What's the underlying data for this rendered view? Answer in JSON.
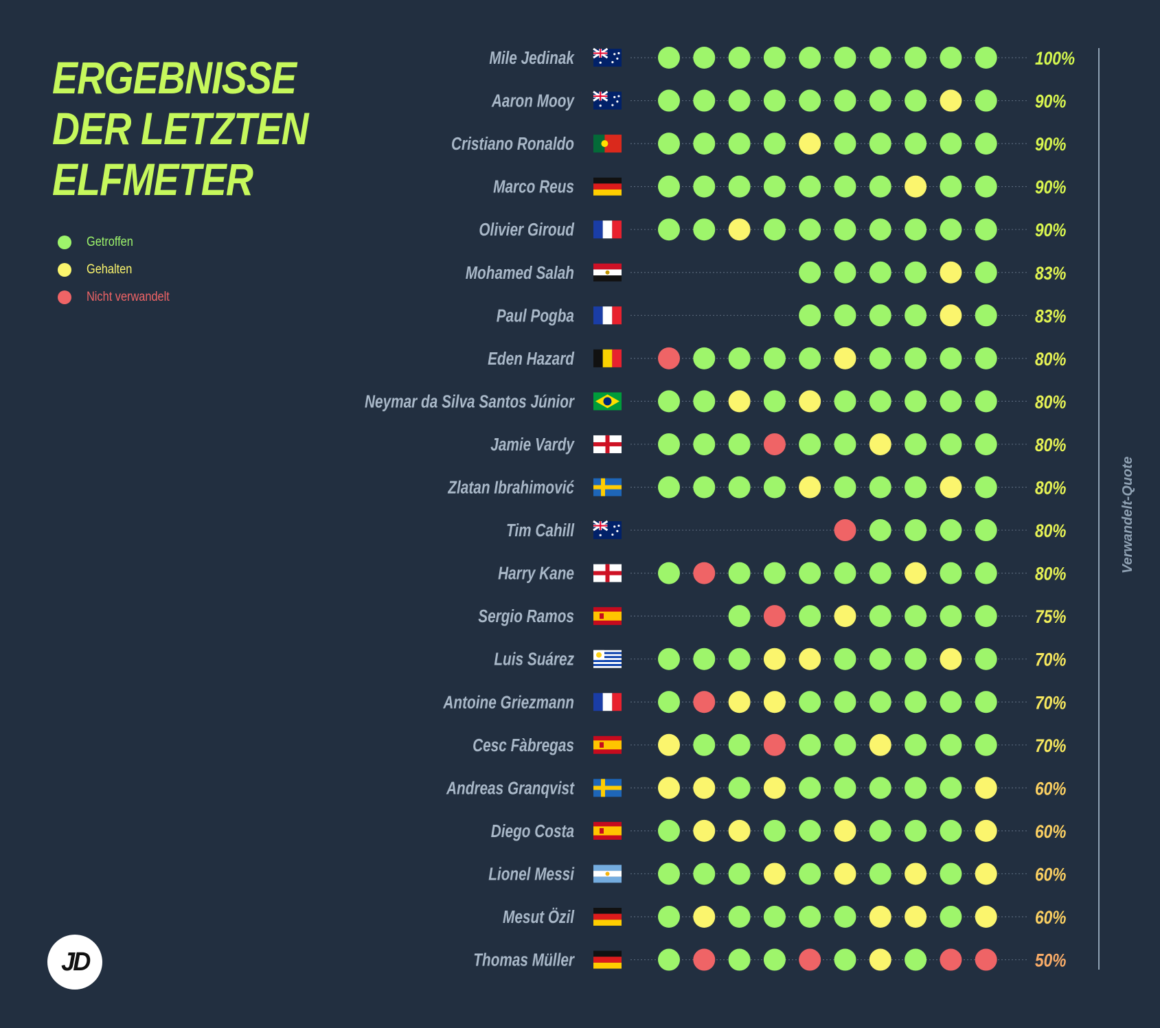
{
  "title_lines": [
    "ERGEBNISSE",
    "DER LETZTEN",
    "ELFMETER"
  ],
  "legend": [
    {
      "key": "G",
      "label": "Getroffen",
      "color": "#9ef56b"
    },
    {
      "key": "H",
      "label": "Gehalten",
      "color": "#fbf56d"
    },
    {
      "key": "N",
      "label": "Nicht verwandelt",
      "color": "#ef6466"
    }
  ],
  "logo_text": "JD",
  "colors": {
    "background": "#222f40",
    "title": "#c6f85c",
    "player_name": "#a9b8c8",
    "guide_line": "#58677a",
    "axis_line": "#8fa1b3"
  },
  "chart_data": {
    "type": "dot-matrix",
    "title": "ERGEBNISSE DER LETZTEN ELFMETER",
    "axis_label": "Verwandelt-Quote",
    "slots_per_row": 10,
    "legend": {
      "G": "Getroffen",
      "H": "Gehalten",
      "N": "Nicht verwandelt"
    },
    "players": [
      {
        "name": "Mile Jedinak",
        "flag": "australia",
        "results": "GGGGGGGGGG",
        "rate": "100%",
        "rate_color": "#d4f74f"
      },
      {
        "name": "Aaron Mooy",
        "flag": "australia",
        "results": "GGGGGGGGHG",
        "rate": "90%",
        "rate_color": "#d9f64f"
      },
      {
        "name": "Cristiano Ronaldo",
        "flag": "portugal",
        "results": "GGGGHGGGGG",
        "rate": "90%",
        "rate_color": "#d9f64f"
      },
      {
        "name": "Marco Reus",
        "flag": "germany",
        "results": "GGGGGGGHGG",
        "rate": "90%",
        "rate_color": "#d9f64f"
      },
      {
        "name": "Olivier Giroud",
        "flag": "france",
        "results": "GGHGGGGGGG",
        "rate": "90%",
        "rate_color": "#d9f64f"
      },
      {
        "name": "Mohamed Salah",
        "flag": "egypt",
        "results": "GGGGHG",
        "rate": "83%",
        "rate_color": "#e2f552"
      },
      {
        "name": "Paul Pogba",
        "flag": "france",
        "results": "GGGGHG",
        "rate": "83%",
        "rate_color": "#e2f552"
      },
      {
        "name": "Eden Hazard",
        "flag": "belgium",
        "results": "NGGGGHGGGG",
        "rate": "80%",
        "rate_color": "#e7f355"
      },
      {
        "name": "Neymar da Silva Santos Júnior",
        "flag": "brazil",
        "results": "GGHGHGGGGG",
        "rate": "80%",
        "rate_color": "#e7f355"
      },
      {
        "name": "Jamie Vardy",
        "flag": "england",
        "results": "GGGNGGHGGG",
        "rate": "80%",
        "rate_color": "#e7f355"
      },
      {
        "name": "Zlatan Ibrahimović",
        "flag": "sweden",
        "results": "GGGGHGGGHG",
        "rate": "80%",
        "rate_color": "#e7f355"
      },
      {
        "name": "Tim Cahill",
        "flag": "australia",
        "results": "NGGGG",
        "rate": "80%",
        "rate_color": "#e7f355"
      },
      {
        "name": "Harry Kane",
        "flag": "england",
        "results": "GNGGGGGHGG",
        "rate": "80%",
        "rate_color": "#e7f355"
      },
      {
        "name": "Sergio Ramos",
        "flag": "spain",
        "results": "GNGHGGGG",
        "rate": "75%",
        "rate_color": "#f0ef5a"
      },
      {
        "name": "Luis Suárez",
        "flag": "uruguay",
        "results": "GGGHHGGGHG",
        "rate": "70%",
        "rate_color": "#f7e85e"
      },
      {
        "name": "Antoine Griezmann",
        "flag": "france",
        "results": "GNHHGGGGGG",
        "rate": "70%",
        "rate_color": "#f7e85e"
      },
      {
        "name": "Cesc Fàbregas",
        "flag": "spain",
        "results": "HGGNGGHGGG",
        "rate": "70%",
        "rate_color": "#f7e85e"
      },
      {
        "name": "Andreas Granqvist",
        "flag": "sweden",
        "results": "HHGHGGGGGH",
        "rate": "60%",
        "rate_color": "#fbd062"
      },
      {
        "name": "Diego Costa",
        "flag": "spain",
        "results": "GHHGGHGGGH",
        "rate": "60%",
        "rate_color": "#fbd062"
      },
      {
        "name": "Lionel Messi",
        "flag": "argentina",
        "results": "GGGHGHGHGH",
        "rate": "60%",
        "rate_color": "#fbd062"
      },
      {
        "name": "Mesut Özil",
        "flag": "germany",
        "results": "GHGGGGHHGH",
        "rate": "60%",
        "rate_color": "#fbd062"
      },
      {
        "name": "Thomas Müller",
        "flag": "germany",
        "results": "GNGGNGHGNN",
        "rate": "50%",
        "rate_color": "#f9ac68"
      }
    ]
  }
}
